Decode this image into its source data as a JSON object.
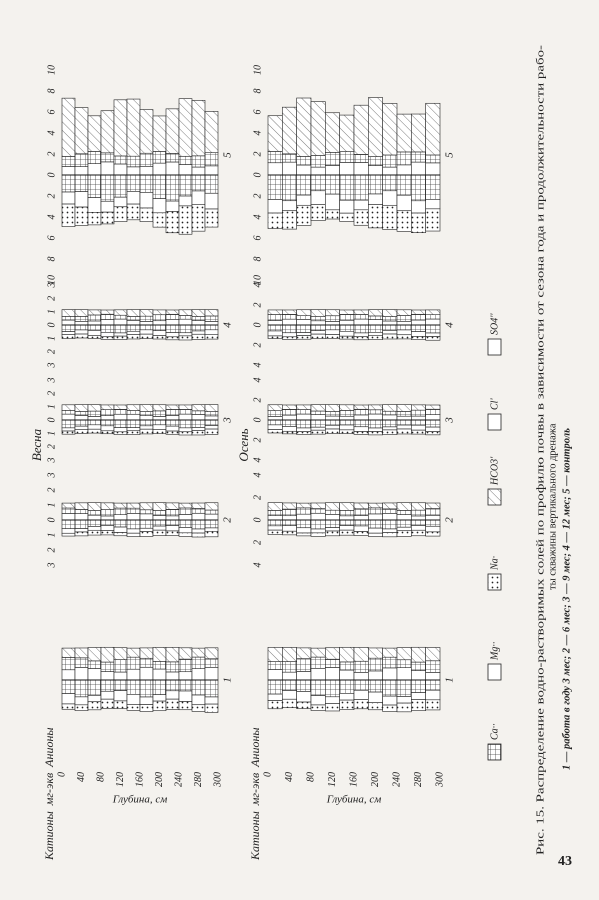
{
  "figure": {
    "axis_title": [
      "Катионы",
      "мг-экв",
      "Анионы"
    ],
    "depth_label": "Глубина, см",
    "depth_ticks": [
      "0",
      "40",
      "80",
      "120",
      "160",
      "200",
      "240",
      "280",
      "300"
    ],
    "rows": [
      {
        "season": "Весна",
        "panels": [
          {
            "number": "1",
            "ticks": []
          },
          {
            "number": "2",
            "ticks": [
              "3",
              "2",
              "1",
              "0",
              "1",
              "2",
              "3"
            ]
          },
          {
            "number": "3",
            "ticks": [
              "3",
              "2",
              "1",
              "0",
              "1",
              "2",
              "3"
            ]
          },
          {
            "number": "4",
            "ticks": [
              "3",
              "2",
              "1",
              "0",
              "1",
              "2",
              "3"
            ]
          },
          {
            "number": "5",
            "ticks": [
              "10",
              "8",
              "6",
              "4",
              "2",
              "0",
              "2",
              "4",
              "6",
              "8",
              "10"
            ]
          }
        ]
      },
      {
        "season": "Осень",
        "panels": [
          {
            "number": "1",
            "ticks": []
          },
          {
            "number": "2",
            "ticks": [
              "4",
              "2",
              "0",
              "2",
              "4"
            ]
          },
          {
            "number": "3",
            "ticks": [
              "4",
              "2",
              "0",
              "2",
              "4"
            ]
          },
          {
            "number": "4",
            "ticks": [
              "4",
              "2",
              "0",
              "2",
              "4"
            ]
          },
          {
            "number": "5",
            "ticks": [
              "10",
              "8",
              "6",
              "4",
              "2",
              "0",
              "2",
              "4",
              "6",
              "8",
              "10"
            ]
          }
        ]
      }
    ],
    "legend": [
      "Ca··",
      "Mg··",
      "Na·",
      "HCO3'",
      "Cl'",
      "SO4''"
    ],
    "caption": [
      "Рис. 15. Распределение водно-растворимых солей по профилю почвы в зависимости от сезона года и продолжительности рабо-",
      "ты скважины вертикального дренажа",
      "1 — работа в году 3 мес; 2 — 6 мес; 3 — 9 мес; 4 — 12 мес; 5 — контроль"
    ],
    "page_number": "43"
  }
}
